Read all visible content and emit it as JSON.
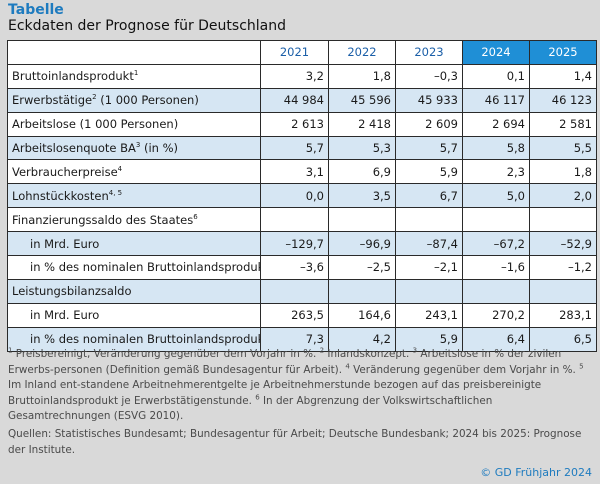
{
  "header": {
    "title": "Tabelle",
    "subtitle": "Eckdaten der Prognose für Deutschland"
  },
  "colors": {
    "accent": "#1e7bbf",
    "projection_header": "#1f8fd6",
    "row_shade": "#d6e6f3"
  },
  "table": {
    "years": [
      "2021",
      "2022",
      "2023",
      "2024",
      "2025"
    ],
    "rows": [
      {
        "label": "Bruttoinlandsprodukt",
        "sup": "1",
        "values": [
          "3,2",
          "1,8",
          "–0,3",
          "0,1",
          "1,4"
        ]
      },
      {
        "label": "Erwerbstätige",
        "sup": "2",
        "suffix": " (1 000 Personen)",
        "values": [
          "44 984",
          "45 596",
          "45 933",
          "46 117",
          "46 123"
        ]
      },
      {
        "label": "Arbeitslose (1 000 Personen)",
        "values": [
          "2 613",
          "2 418",
          "2 609",
          "2 694",
          "2 581"
        ]
      },
      {
        "label": "Arbeitslosenquote BA",
        "sup": "3",
        "suffix": " (in %)",
        "values": [
          "5,7",
          "5,3",
          "5,7",
          "5,8",
          "5,5"
        ]
      },
      {
        "label": "Verbraucherpreise",
        "sup": "4",
        "values": [
          "3,1",
          "6,9",
          "5,9",
          "2,3",
          "1,8"
        ]
      },
      {
        "label": "Lohnstückkosten",
        "sup": "4, 5",
        "values": [
          "0,0",
          "3,5",
          "6,7",
          "5,0",
          "2,0"
        ]
      },
      {
        "label": "Finanzierungssaldo des Staates",
        "sup": "6",
        "values": [
          "",
          "",
          "",
          "",
          ""
        ]
      },
      {
        "label": "in Mrd. Euro",
        "values": [
          "–129,7",
          "–96,9",
          "–87,4",
          "–67,2",
          "–52,9"
        ]
      },
      {
        "label": "in % des nominalen Bruttoinlandsprodukts",
        "values": [
          "–3,6",
          "–2,5",
          "–2,1",
          "–1,6",
          "–1,2"
        ]
      },
      {
        "label": "Leistungsbilanzsaldo",
        "values": [
          "",
          "",
          "",
          "",
          ""
        ]
      },
      {
        "label": "in Mrd. Euro",
        "values": [
          "263,5",
          "164,6",
          "243,1",
          "270,2",
          "283,1"
        ]
      },
      {
        "label": "in % des nominalen Bruttoinlandsprodukts",
        "values": [
          "7,3",
          "4,2",
          "5,9",
          "6,4",
          "6,5"
        ]
      }
    ]
  },
  "footnotes": {
    "sup1": "1",
    "text1": " Preisbereinigt, Veränderung gegenüber dem Vorjahr in %. ",
    "sup2": "2",
    "text2": " Inlandskonzept. ",
    "sup3": "3",
    "text3": " Arbeitslose in % der zivilen Erwerbs-personen (Definition gemäß Bundesagentur für Arbeit). ",
    "sup4": "4",
    "text4": " Veränderung gegenüber dem Vorjahr in %. ",
    "sup5": "5",
    "text5": " Im Inland ent-standene Arbeitnehmerentgelte je Arbeitnehmerstunde bezogen auf das preisbereinigte Bruttoinlandsprodukt je Erwerbstätigenstunde. ",
    "sup6": "6",
    "text6": " In der Abgrenzung der Volkswirtschaftlichen Gesamtrechnungen (ESVG 2010)."
  },
  "sources": "Quellen: Statistisches Bundesamt; Bundesagentur für Arbeit; Deutsche Bundesbank; 2024 bis 2025: Prognose der Institute.",
  "copyright": "© GD Frühjahr 2024"
}
